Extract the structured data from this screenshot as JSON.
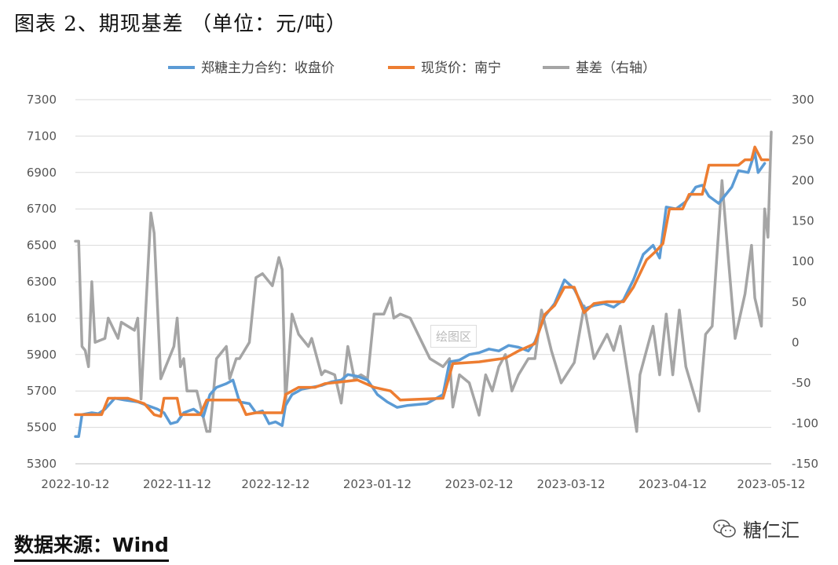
{
  "title": "图表 2、期现基差 （单位：元/吨）",
  "source": "数据来源：Wind",
  "watermark": "绘图区",
  "brand": "糖仁汇",
  "brand_icon": "wechat-icon",
  "colors": {
    "futures": "#5b9bd5",
    "spot": "#ed7d31",
    "basis": "#a5a5a5",
    "grid": "#d9d9d9"
  },
  "chart_data": {
    "type": "line",
    "legend_position": "top",
    "grid": true,
    "x_ticks": [
      "2022-10-12",
      "2022-11-12",
      "2022-12-12",
      "2023-01-12",
      "2023-02-12",
      "2023-03-12",
      "2023-04-12",
      "2023-05-12"
    ],
    "x_range": [
      "2022-10-12",
      "2023-05-12"
    ],
    "y_left": {
      "min": 5300,
      "max": 7300,
      "ticks": [
        5300,
        5500,
        5700,
        5900,
        6100,
        6300,
        6500,
        6700,
        6900,
        7100,
        7300
      ]
    },
    "y_right": {
      "min": -150,
      "max": 300,
      "ticks": [
        "-150",
        "-100",
        "-50",
        "0",
        "50",
        "100",
        "150",
        "200",
        "250",
        "300"
      ]
    },
    "series": [
      {
        "name": "郑糖主力合约：收盘价",
        "axis": "left",
        "points": [
          [
            "2022-10-12",
            5450
          ],
          [
            "2022-10-13",
            5450
          ],
          [
            "2022-10-14",
            5570
          ],
          [
            "2022-10-17",
            5580
          ],
          [
            "2022-10-19",
            5575
          ],
          [
            "2022-10-21",
            5600
          ],
          [
            "2022-10-24",
            5660
          ],
          [
            "2022-10-27",
            5650
          ],
          [
            "2022-10-31",
            5640
          ],
          [
            "2022-11-03",
            5620
          ],
          [
            "2022-11-06",
            5600
          ],
          [
            "2022-11-08",
            5580
          ],
          [
            "2022-11-10",
            5520
          ],
          [
            "2022-11-12",
            5530
          ],
          [
            "2022-11-14",
            5580
          ],
          [
            "2022-11-17",
            5600
          ],
          [
            "2022-11-20",
            5560
          ],
          [
            "2022-11-22",
            5680
          ],
          [
            "2022-11-24",
            5720
          ],
          [
            "2022-11-27",
            5740
          ],
          [
            "2022-11-29",
            5760
          ],
          [
            "2022-12-01",
            5640
          ],
          [
            "2022-12-04",
            5630
          ],
          [
            "2022-12-06",
            5580
          ],
          [
            "2022-12-08",
            5590
          ],
          [
            "2022-12-10",
            5520
          ],
          [
            "2022-12-12",
            5530
          ],
          [
            "2022-12-14",
            5510
          ],
          [
            "2022-12-15",
            5620
          ],
          [
            "2022-12-17",
            5680
          ],
          [
            "2022-12-20",
            5710
          ],
          [
            "2022-12-23",
            5720
          ],
          [
            "2022-12-26",
            5730
          ],
          [
            "2022-12-29",
            5750
          ],
          [
            "2023-01-01",
            5760
          ],
          [
            "2023-01-03",
            5790
          ],
          [
            "2023-01-06",
            5780
          ],
          [
            "2023-01-09",
            5760
          ],
          [
            "2023-01-12",
            5680
          ],
          [
            "2023-01-15",
            5640
          ],
          [
            "2023-01-18",
            5610
          ],
          [
            "2023-01-21",
            5620
          ],
          [
            "2023-01-27",
            5630
          ],
          [
            "2023-01-30",
            5660
          ],
          [
            "2023-02-01",
            5680
          ],
          [
            "2023-02-03",
            5860
          ],
          [
            "2023-02-06",
            5870
          ],
          [
            "2023-02-09",
            5900
          ],
          [
            "2023-02-12",
            5910
          ],
          [
            "2023-02-15",
            5930
          ],
          [
            "2023-02-18",
            5920
          ],
          [
            "2023-02-21",
            5950
          ],
          [
            "2023-02-24",
            5940
          ],
          [
            "2023-02-27",
            5920
          ],
          [
            "2023-03-01",
            5970
          ],
          [
            "2023-03-04",
            6110
          ],
          [
            "2023-03-07",
            6180
          ],
          [
            "2023-03-10",
            6310
          ],
          [
            "2023-03-13",
            6260
          ],
          [
            "2023-03-16",
            6150
          ],
          [
            "2023-03-19",
            6170
          ],
          [
            "2023-03-22",
            6180
          ],
          [
            "2023-03-25",
            6160
          ],
          [
            "2023-03-28",
            6200
          ],
          [
            "2023-03-31",
            6310
          ],
          [
            "2023-04-03",
            6450
          ],
          [
            "2023-04-06",
            6500
          ],
          [
            "2023-04-08",
            6430
          ],
          [
            "2023-04-10",
            6710
          ],
          [
            "2023-04-13",
            6700
          ],
          [
            "2023-04-16",
            6740
          ],
          [
            "2023-04-19",
            6820
          ],
          [
            "2023-04-21",
            6830
          ],
          [
            "2023-04-23",
            6770
          ],
          [
            "2023-04-26",
            6730
          ],
          [
            "2023-04-30",
            6820
          ],
          [
            "2023-05-02",
            6910
          ],
          [
            "2023-05-05",
            6900
          ],
          [
            "2023-05-07",
            7010
          ],
          [
            "2023-05-08",
            6900
          ],
          [
            "2023-05-10",
            6950
          ]
        ]
      },
      {
        "name": "现货价：南宁",
        "axis": "left",
        "points": [
          [
            "2022-10-12",
            5570
          ],
          [
            "2022-10-15",
            5570
          ],
          [
            "2022-10-20",
            5570
          ],
          [
            "2022-10-22",
            5660
          ],
          [
            "2022-10-28",
            5660
          ],
          [
            "2022-11-02",
            5630
          ],
          [
            "2022-11-05",
            5570
          ],
          [
            "2022-11-07",
            5560
          ],
          [
            "2022-11-08",
            5660
          ],
          [
            "2022-11-12",
            5660
          ],
          [
            "2022-11-13",
            5570
          ],
          [
            "2022-11-19",
            5570
          ],
          [
            "2022-11-21",
            5650
          ],
          [
            "2022-12-01",
            5650
          ],
          [
            "2022-12-03",
            5570
          ],
          [
            "2022-12-06",
            5580
          ],
          [
            "2022-12-14",
            5580
          ],
          [
            "2022-12-15",
            5680
          ],
          [
            "2022-12-19",
            5720
          ],
          [
            "2022-12-24",
            5720
          ],
          [
            "2022-12-27",
            5740
          ],
          [
            "2023-01-01",
            5750
          ],
          [
            "2023-01-06",
            5760
          ],
          [
            "2023-01-11",
            5720
          ],
          [
            "2023-01-16",
            5700
          ],
          [
            "2023-01-19",
            5650
          ],
          [
            "2023-02-01",
            5660
          ],
          [
            "2023-02-04",
            5850
          ],
          [
            "2023-02-12",
            5860
          ],
          [
            "2023-02-20",
            5880
          ],
          [
            "2023-02-24",
            5920
          ],
          [
            "2023-03-01",
            5960
          ],
          [
            "2023-03-04",
            6120
          ],
          [
            "2023-03-07",
            6170
          ],
          [
            "2023-03-10",
            6270
          ],
          [
            "2023-03-13",
            6270
          ],
          [
            "2023-03-16",
            6130
          ],
          [
            "2023-03-19",
            6180
          ],
          [
            "2023-03-23",
            6190
          ],
          [
            "2023-03-28",
            6190
          ],
          [
            "2023-03-31",
            6270
          ],
          [
            "2023-04-04",
            6420
          ],
          [
            "2023-04-07",
            6470
          ],
          [
            "2023-04-09",
            6510
          ],
          [
            "2023-04-11",
            6700
          ],
          [
            "2023-04-15",
            6700
          ],
          [
            "2023-04-17",
            6780
          ],
          [
            "2023-04-21",
            6780
          ],
          [
            "2023-04-23",
            6940
          ],
          [
            "2023-05-02",
            6940
          ],
          [
            "2023-05-04",
            6970
          ],
          [
            "2023-05-06",
            6970
          ],
          [
            "2023-05-07",
            7040
          ],
          [
            "2023-05-09",
            6970
          ],
          [
            "2023-05-11",
            6970
          ]
        ]
      },
      {
        "name": "基差（右轴）",
        "axis": "right",
        "points": [
          [
            "2022-10-12",
            125
          ],
          [
            "2022-10-13",
            125
          ],
          [
            "2022-10-14",
            -5
          ],
          [
            "2022-10-15",
            -10
          ],
          [
            "2022-10-16",
            -30
          ],
          [
            "2022-10-17",
            75
          ],
          [
            "2022-10-18",
            0
          ],
          [
            "2022-10-21",
            5
          ],
          [
            "2022-10-22",
            30
          ],
          [
            "2022-10-25",
            5
          ],
          [
            "2022-10-26",
            25
          ],
          [
            "2022-10-30",
            15
          ],
          [
            "2022-10-31",
            30
          ],
          [
            "2022-11-01",
            -70
          ],
          [
            "2022-11-04",
            160
          ],
          [
            "2022-11-05",
            135
          ],
          [
            "2022-11-07",
            -45
          ],
          [
            "2022-11-11",
            -5
          ],
          [
            "2022-11-12",
            30
          ],
          [
            "2022-11-13",
            -30
          ],
          [
            "2022-11-14",
            -20
          ],
          [
            "2022-11-15",
            -60
          ],
          [
            "2022-11-18",
            -60
          ],
          [
            "2022-11-21",
            -110
          ],
          [
            "2022-11-22",
            -110
          ],
          [
            "2022-11-24",
            -20
          ],
          [
            "2022-11-27",
            -5
          ],
          [
            "2022-11-28",
            -45
          ],
          [
            "2022-11-30",
            -20
          ],
          [
            "2022-12-01",
            -20
          ],
          [
            "2022-12-04",
            0
          ],
          [
            "2022-12-06",
            80
          ],
          [
            "2022-12-08",
            85
          ],
          [
            "2022-12-11",
            70
          ],
          [
            "2022-12-13",
            105
          ],
          [
            "2022-12-14",
            90
          ],
          [
            "2022-12-15",
            -75
          ],
          [
            "2022-12-17",
            35
          ],
          [
            "2022-12-19",
            10
          ],
          [
            "2022-12-22",
            -5
          ],
          [
            "2022-12-23",
            5
          ],
          [
            "2022-12-26",
            -40
          ],
          [
            "2022-12-27",
            -35
          ],
          [
            "2022-12-30",
            -40
          ],
          [
            "2023-01-01",
            -75
          ],
          [
            "2023-01-03",
            -5
          ],
          [
            "2023-01-05",
            -45
          ],
          [
            "2023-01-07",
            -40
          ],
          [
            "2023-01-09",
            -45
          ],
          [
            "2023-01-11",
            35
          ],
          [
            "2023-01-13",
            35
          ],
          [
            "2023-01-14",
            35
          ],
          [
            "2023-01-16",
            55
          ],
          [
            "2023-01-17",
            30
          ],
          [
            "2023-01-19",
            35
          ],
          [
            "2023-01-22",
            30
          ],
          [
            "2023-01-25",
            5
          ],
          [
            "2023-01-28",
            -20
          ],
          [
            "2023-02-01",
            -30
          ],
          [
            "2023-02-03",
            -20
          ],
          [
            "2023-02-04",
            -80
          ],
          [
            "2023-02-06",
            -40
          ],
          [
            "2023-02-09",
            -50
          ],
          [
            "2023-02-12",
            -90
          ],
          [
            "2023-02-14",
            -40
          ],
          [
            "2023-02-16",
            -60
          ],
          [
            "2023-02-18",
            -30
          ],
          [
            "2023-02-20",
            -15
          ],
          [
            "2023-02-22",
            -60
          ],
          [
            "2023-02-24",
            -40
          ],
          [
            "2023-02-27",
            -20
          ],
          [
            "2023-03-01",
            -20
          ],
          [
            "2023-03-03",
            40
          ],
          [
            "2023-03-06",
            -10
          ],
          [
            "2023-03-09",
            -50
          ],
          [
            "2023-03-13",
            -25
          ],
          [
            "2023-03-16",
            45
          ],
          [
            "2023-03-19",
            -20
          ],
          [
            "2023-03-23",
            10
          ],
          [
            "2023-03-25",
            -10
          ],
          [
            "2023-03-27",
            20
          ],
          [
            "2023-04-01",
            -110
          ],
          [
            "2023-04-02",
            -40
          ],
          [
            "2023-04-06",
            20
          ],
          [
            "2023-04-08",
            -40
          ],
          [
            "2023-04-10",
            35
          ],
          [
            "2023-04-12",
            -40
          ],
          [
            "2023-04-14",
            40
          ],
          [
            "2023-04-16",
            -30
          ],
          [
            "2023-04-20",
            -85
          ],
          [
            "2023-04-22",
            10
          ],
          [
            "2023-04-24",
            20
          ],
          [
            "2023-04-27",
            200
          ],
          [
            "2023-04-29",
            100
          ],
          [
            "2023-05-01",
            5
          ],
          [
            "2023-05-04",
            60
          ],
          [
            "2023-05-06",
            120
          ],
          [
            "2023-05-07",
            55
          ],
          [
            "2023-05-09",
            20
          ],
          [
            "2023-05-10",
            165
          ],
          [
            "2023-05-11",
            130
          ],
          [
            "2023-05-12",
            260
          ]
        ]
      }
    ]
  }
}
